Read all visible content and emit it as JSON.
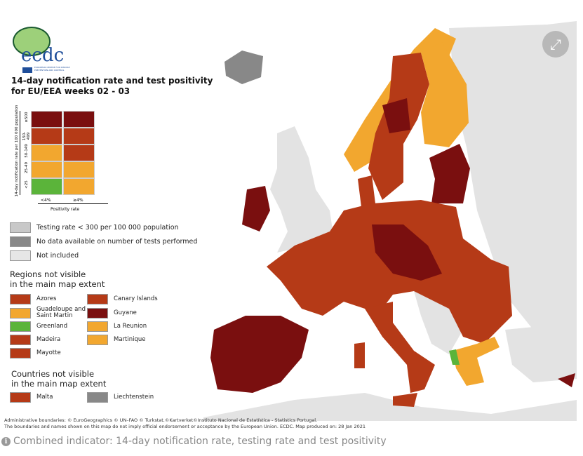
{
  "logo": {
    "text": "ecdc",
    "subtitle": "EUROPEAN CENTRE FOR DISEASE PREVENTION AND CONTROL"
  },
  "title_line1": "14-day notification rate and test positivity",
  "title_line2": "for EU/EEA weeks 02 - 03",
  "matrix": {
    "y_axis_label": "14-day notification rate per 100 000 population",
    "x_axis_label": "Positivity rate",
    "rows": [
      "≥500",
      "150-499",
      "50-149",
      "25-49",
      "<25"
    ],
    "cols": [
      "<4%",
      "≥4%"
    ],
    "colors": [
      [
        "#7a0f0f",
        "#7a0f0f"
      ],
      [
        "#b53a17",
        "#b53a17"
      ],
      [
        "#f2a72f",
        "#b53a17"
      ],
      [
        "#f2a72f",
        "#f2a72f"
      ],
      [
        "#5bb43a",
        "#f2a72f"
      ]
    ]
  },
  "status_legend": [
    {
      "label": "Testing rate < 300 per 100 000 population",
      "color": "#c8c8c8"
    },
    {
      "label": "No data available on number of tests performed",
      "color": "#888888"
    },
    {
      "label": "Not included",
      "color": "#e6e6e6"
    }
  ],
  "regions_heading_1": "Regions not visible",
  "regions_heading_2": "in the main map extent",
  "regions": [
    {
      "label": "Azores",
      "color": "#b53a17"
    },
    {
      "label": "Canary Islands",
      "color": "#b53a17"
    },
    {
      "label": "Guadeloupe and Saint Martin",
      "color": "#f2a72f"
    },
    {
      "label": "Guyane",
      "color": "#7a0f0f"
    },
    {
      "label": "Greenland",
      "color": "#5bb43a"
    },
    {
      "label": "La Reunion",
      "color": "#f2a72f"
    },
    {
      "label": "Madeira",
      "color": "#b53a17"
    },
    {
      "label": "Martinique",
      "color": "#f2a72f"
    },
    {
      "label": "Mayotte",
      "color": "#b53a17"
    }
  ],
  "countries_heading_1": "Countries not visible",
  "countries_heading_2": "in the main map extent",
  "countries": [
    {
      "label": "Malta",
      "color": "#b53a17"
    },
    {
      "label": "Liechtenstein",
      "color": "#888888"
    }
  ],
  "footer_line1": "Administrative boundaries: © EuroGeographics © UN–FAO © Turkstat.©Kartverket©Instituto Nacional de Estatística - Statistics Portugal.",
  "footer_line2": "The boundaries and names shown on this map do not imply official endorsement or acceptance by the European Union. ECDC. Map produced on: 28 Jan 2021",
  "caption": "Combined indicator: 14-day notification rate, testing rate and test positivity",
  "info_icon": "i",
  "expand_icon": "⤢"
}
